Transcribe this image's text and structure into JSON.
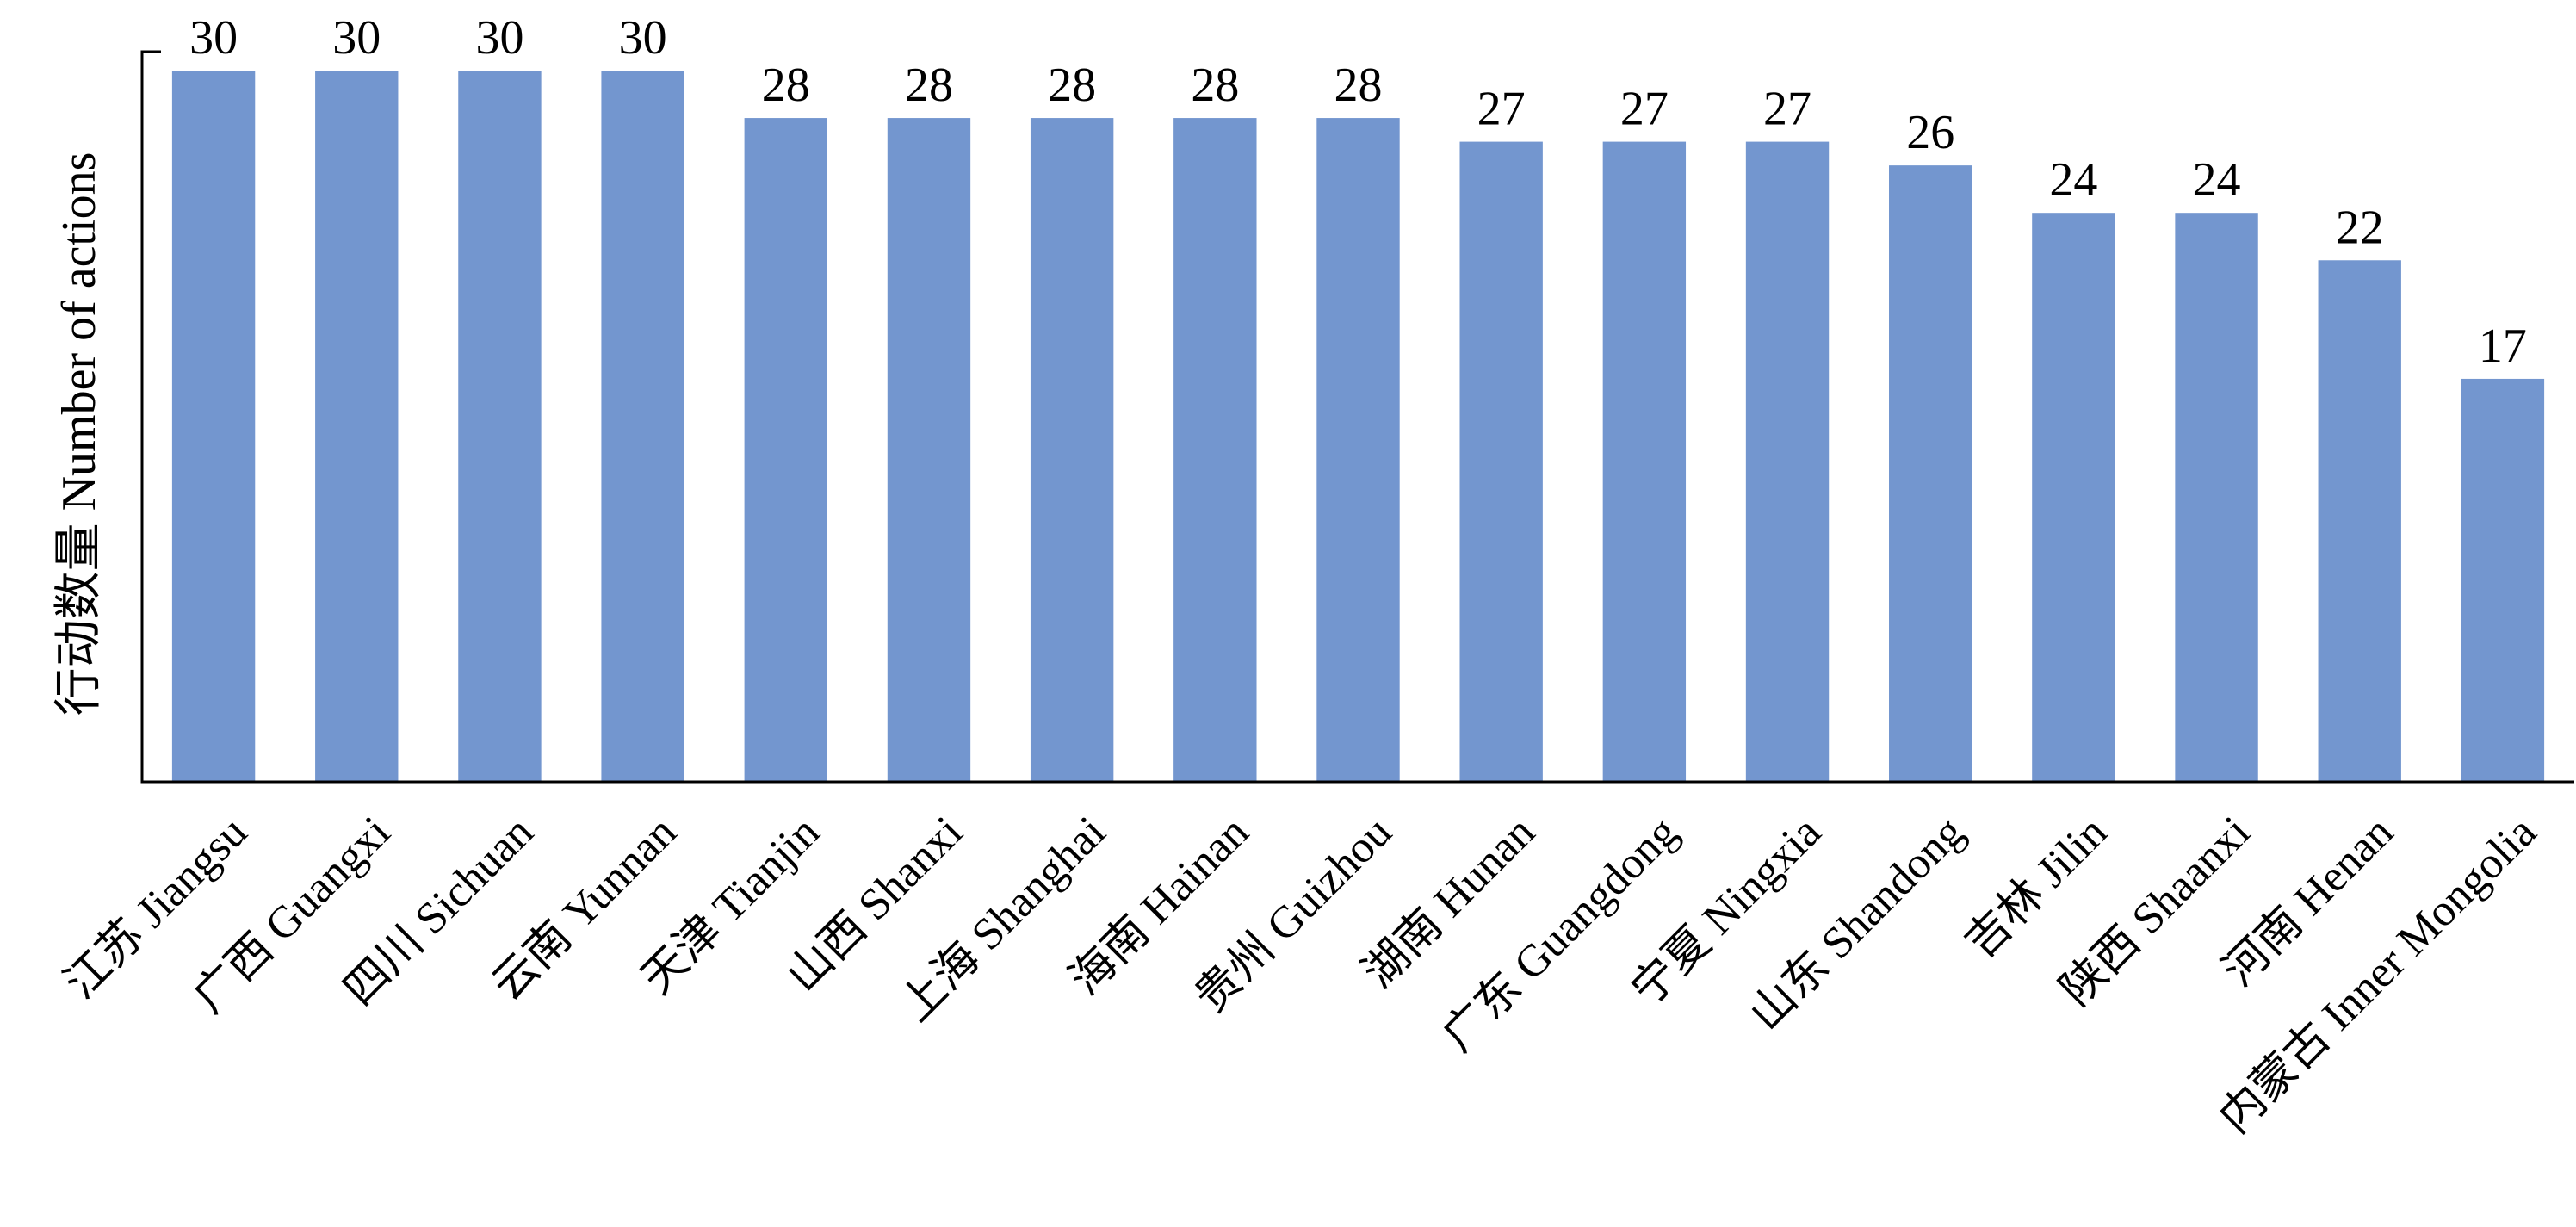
{
  "chart_data": {
    "type": "bar",
    "title": "",
    "xlabel": "",
    "ylabel": "行动数量 Number of actions",
    "ylim": [
      0,
      30
    ],
    "grid": false,
    "legend": "none",
    "bar_color": "#7396cf",
    "categories": [
      "江苏 Jiangsu",
      "广西 Guangxi",
      "四川 Sichuan",
      "云南 Yunnan",
      "天津 Tianjin",
      "山西 Shanxi",
      "上海 Shanghai",
      "海南 Hainan",
      "贵州 Guizhou",
      "湖南 Hunan",
      "广东 Guangdong",
      "宁夏 Ningxia",
      "山东 Shandong",
      "吉林 Jilin",
      "陕西 Shaanxi",
      "河南 Henan",
      "内蒙古 Inner Mongolia"
    ],
    "values": [
      30,
      30,
      30,
      30,
      28,
      28,
      28,
      28,
      28,
      27,
      27,
      27,
      26,
      24,
      24,
      22,
      17
    ]
  }
}
